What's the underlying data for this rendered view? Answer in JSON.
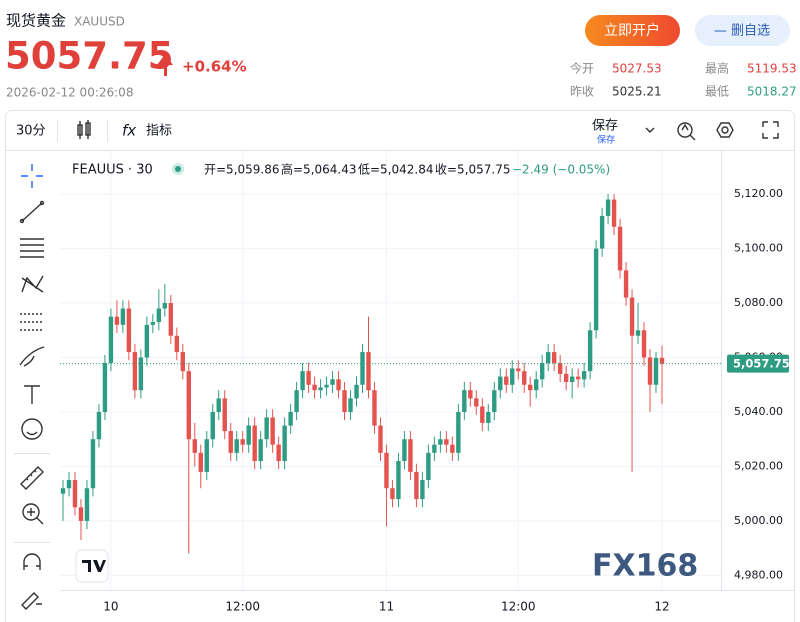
{
  "header": {
    "name": "现货黄金",
    "code": "XAUUSD",
    "price": "5057.75",
    "change": "+0.64%",
    "time": "2026-02-12 00:26:08",
    "open_account": "立即开户",
    "remove_watchlist": "— 删自选"
  },
  "stats": [
    {
      "label": "今开",
      "value": "5027.53"
    },
    {
      "label": "最高",
      "value": "5119.53"
    },
    {
      "label": "昨收",
      "value": "5025.21"
    },
    {
      "label": "最低",
      "value": "5018.27"
    }
  ],
  "toolbar": {
    "interval": "30分",
    "fx_icon": "fx",
    "indicators": "指标",
    "save": "保存",
    "save_sub": "保存"
  },
  "chart_data": {
    "type": "candlestick",
    "symbol": "FEAUUS · 30",
    "ohlc_labels": [
      "开=5,059.86",
      "高=5,064.43",
      "低=5,042.84",
      "收=5,057.75"
    ],
    "change": "−2.49 (−0.05%)",
    "up_color": "#2e9c83",
    "down_color": "#e5534f",
    "grid": true,
    "watermark": "FX168",
    "last_price_label": "5,057.75",
    "ylim": [
      4975,
      5134
    ],
    "yticks": [
      {
        "value": 4980,
        "label": "4,980.00"
      },
      {
        "value": 5000,
        "label": "5,000.00"
      },
      {
        "value": 5020,
        "label": "5,020.00"
      },
      {
        "value": 5040,
        "label": "5,040.00"
      },
      {
        "value": 5060,
        "label": "5,060.00"
      },
      {
        "value": 5080,
        "label": "5,080.00"
      },
      {
        "value": 5100,
        "label": "5,100.00"
      },
      {
        "value": 5120,
        "label": "5,120.00"
      }
    ],
    "xticks": [
      {
        "value": 8,
        "label": "10"
      },
      {
        "value": 30,
        "label": "12:00"
      },
      {
        "value": 54,
        "label": "11"
      },
      {
        "value": 76,
        "label": "12:00"
      },
      {
        "value": 100,
        "label": "12"
      }
    ],
    "candles": [
      [
        5010,
        5015,
        5000,
        5012
      ],
      [
        5012,
        5018,
        5009,
        5015
      ],
      [
        5015,
        5018,
        5002,
        5005
      ],
      [
        5005,
        5008,
        4993,
        5000
      ],
      [
        5000,
        5015,
        4997,
        5012
      ],
      [
        5012,
        5033,
        5009,
        5030
      ],
      [
        5030,
        5043,
        5027,
        5040
      ],
      [
        5040,
        5061,
        5037,
        5058
      ],
      [
        5058,
        5078,
        5055,
        5075
      ],
      [
        5075,
        5081,
        5069,
        5072
      ],
      [
        5072,
        5081,
        5069,
        5078
      ],
      [
        5078,
        5081,
        5059,
        5062
      ],
      [
        5062,
        5065,
        5045,
        5048
      ],
      [
        5048,
        5063,
        5045,
        5060
      ],
      [
        5060,
        5075,
        5057,
        5072
      ],
      [
        5072,
        5076,
        5069,
        5073
      ],
      [
        5073,
        5085,
        5070,
        5078
      ],
      [
        5078,
        5087,
        5075,
        5080
      ],
      [
        5080,
        5083,
        5065,
        5068
      ],
      [
        5068,
        5071,
        5059,
        5062
      ],
      [
        5062,
        5065,
        5052,
        5055
      ],
      [
        5055,
        5058,
        4988,
        5030
      ],
      [
        5030,
        5036,
        5020,
        5025
      ],
      [
        5025,
        5028,
        5012,
        5018
      ],
      [
        5018,
        5033,
        5015,
        5030
      ],
      [
        5030,
        5043,
        5027,
        5040
      ],
      [
        5040,
        5048,
        5037,
        5045
      ],
      [
        5045,
        5048,
        5030,
        5033
      ],
      [
        5033,
        5036,
        5022,
        5025
      ],
      [
        5025,
        5033,
        5022,
        5030
      ],
      [
        5030,
        5033,
        5025,
        5028
      ],
      [
        5028,
        5038,
        5025,
        5035
      ],
      [
        5035,
        5038,
        5019,
        5022
      ],
      [
        5022,
        5033,
        5019,
        5030
      ],
      [
        5030,
        5041,
        5027,
        5038
      ],
      [
        5038,
        5041,
        5025,
        5028
      ],
      [
        5028,
        5031,
        5019,
        5022
      ],
      [
        5022,
        5038,
        5019,
        5035
      ],
      [
        5035,
        5043,
        5032,
        5040
      ],
      [
        5040,
        5051,
        5037,
        5048
      ],
      [
        5048,
        5058,
        5045,
        5055
      ],
      [
        5055,
        5058,
        5047,
        5050
      ],
      [
        5050,
        5053,
        5045,
        5048
      ],
      [
        5048,
        5052,
        5045,
        5049
      ],
      [
        5049,
        5053,
        5046,
        5050
      ],
      [
        5050,
        5055,
        5047,
        5052
      ],
      [
        5052,
        5055,
        5045,
        5048
      ],
      [
        5048,
        5051,
        5037,
        5040
      ],
      [
        5040,
        5048,
        5037,
        5045
      ],
      [
        5045,
        5053,
        5042,
        5050
      ],
      [
        5050,
        5065,
        5047,
        5062
      ],
      [
        5062,
        5075,
        5045,
        5048
      ],
      [
        5048,
        5051,
        5032,
        5035
      ],
      [
        5035,
        5038,
        5022,
        5025
      ],
      [
        5025,
        5028,
        4998,
        5012
      ],
      [
        5012,
        5015,
        5005,
        5008
      ],
      [
        5008,
        5025,
        5005,
        5022
      ],
      [
        5022,
        5033,
        5019,
        5030
      ],
      [
        5030,
        5033,
        5015,
        5018
      ],
      [
        5018,
        5021,
        5005,
        5008
      ],
      [
        5008,
        5018,
        5005,
        5015
      ],
      [
        5015,
        5028,
        5012,
        5025
      ],
      [
        5025,
        5031,
        5022,
        5028
      ],
      [
        5028,
        5033,
        5025,
        5030
      ],
      [
        5030,
        5033,
        5025,
        5028
      ],
      [
        5028,
        5031,
        5022,
        5025
      ],
      [
        5025,
        5043,
        5022,
        5040
      ],
      [
        5040,
        5051,
        5037,
        5048
      ],
      [
        5048,
        5051,
        5042,
        5045
      ],
      [
        5045,
        5048,
        5039,
        5042
      ],
      [
        5042,
        5045,
        5033,
        5036
      ],
      [
        5036,
        5043,
        5033,
        5040
      ],
      [
        5040,
        5051,
        5037,
        5048
      ],
      [
        5048,
        5056,
        5045,
        5053
      ],
      [
        5053,
        5056,
        5047,
        5050
      ],
      [
        5050,
        5059,
        5047,
        5056
      ],
      [
        5056,
        5059,
        5052,
        5055
      ],
      [
        5055,
        5058,
        5047,
        5050
      ],
      [
        5050,
        5053,
        5042,
        5048
      ],
      [
        5048,
        5055,
        5045,
        5052
      ],
      [
        5052,
        5061,
        5049,
        5058
      ],
      [
        5058,
        5065,
        5055,
        5062
      ],
      [
        5062,
        5065,
        5055,
        5058
      ],
      [
        5058,
        5061,
        5051,
        5054
      ],
      [
        5054,
        5057,
        5048,
        5051
      ],
      [
        5051,
        5056,
        5045,
        5053
      ],
      [
        5053,
        5056,
        5049,
        5052
      ],
      [
        5052,
        5058,
        5049,
        5055
      ],
      [
        5055,
        5073,
        5052,
        5070
      ],
      [
        5070,
        5103,
        5067,
        5100
      ],
      [
        5100,
        5115,
        5097,
        5112
      ],
      [
        5112,
        5120,
        5109,
        5118
      ],
      [
        5118,
        5120,
        5105,
        5108
      ],
      [
        5108,
        5111,
        5089,
        5092
      ],
      [
        5092,
        5095,
        5079,
        5082
      ],
      [
        5082,
        5085,
        5018,
        5068
      ],
      [
        5068,
        5080,
        5065,
        5070
      ],
      [
        5070,
        5073,
        5057,
        5060
      ],
      [
        5060,
        5063,
        5040,
        5050
      ],
      [
        5050,
        5062,
        5047,
        5059.86
      ],
      [
        5059.86,
        5064.43,
        5042.84,
        5057.75
      ]
    ]
  }
}
